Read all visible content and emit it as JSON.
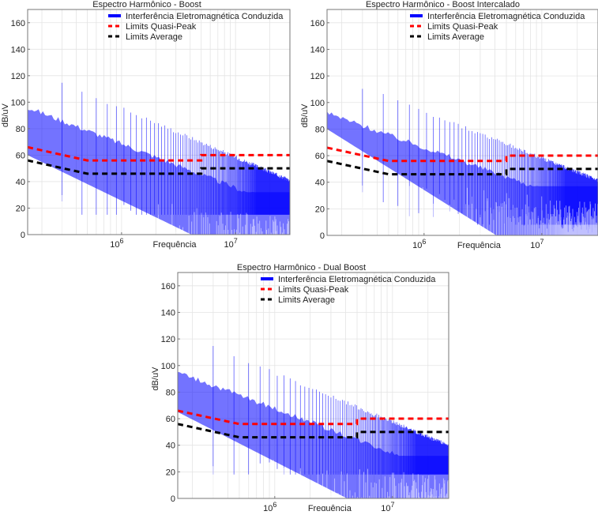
{
  "chart_data": [
    {
      "type": "line",
      "title": "Espectro Harmônico - Boost",
      "xlabel": "Frequência",
      "ylabel": "dB/uV",
      "xscale": "log",
      "xlim": [
        150000,
        30000000
      ],
      "ylim": [
        0,
        170
      ],
      "yticks": [
        0,
        20,
        40,
        60,
        80,
        100,
        120,
        140,
        160
      ],
      "xticks": [
        {
          "value": 1000000,
          "base": "10",
          "exp": "6"
        },
        {
          "value": 10000000,
          "base": "10",
          "exp": "7"
        }
      ],
      "grid": true,
      "legend_position": "top-right",
      "spectrum": {
        "name": "Interferência Eletromagnética Conduzida",
        "color": "#0000ff",
        "fundamental_hz": 150000,
        "peak_start_db": 126,
        "floor_start_db": 60,
        "floor_end_db": 30,
        "peak_slope_db_per_decade": -37,
        "deep_notch_db": 15
      },
      "series": [
        {
          "name": "Interferência Eletromagnética Conduzida",
          "color": "#0000ff",
          "style": "solid"
        },
        {
          "name": "Limits Quasi-Peak",
          "color": "#ff0000",
          "style": "dashed",
          "x": [
            150000,
            500000,
            5000000,
            5000000,
            30000000
          ],
          "y": [
            66,
            56,
            56,
            60,
            60
          ]
        },
        {
          "name": "Limits Average",
          "color": "#000000",
          "style": "dashed",
          "x": [
            150000,
            500000,
            5000000,
            5000000,
            30000000
          ],
          "y": [
            56,
            46,
            46,
            50,
            50
          ]
        }
      ]
    },
    {
      "type": "line",
      "title": "Espectro Harmônico - Boost Intercalado",
      "xlabel": "Frequência",
      "ylabel": "dB/uV",
      "xscale": "log",
      "xlim": [
        150000,
        30000000
      ],
      "ylim": [
        0,
        170
      ],
      "yticks": [
        0,
        20,
        40,
        60,
        80,
        100,
        120,
        140,
        160
      ],
      "xticks": [
        {
          "value": 1000000,
          "base": "10",
          "exp": "6"
        },
        {
          "value": 10000000,
          "base": "10",
          "exp": "7"
        }
      ],
      "grid": true,
      "legend_position": "top-right",
      "spectrum": {
        "name": "Interferência Eletromagnética Conduzida",
        "color": "#0000ff",
        "fundamental_hz": 150000,
        "peak_start_db": 122,
        "floor_start_db": 80,
        "floor_end_db": 35,
        "peak_slope_db_per_decade": -35,
        "deep_notch_db": 8
      },
      "series": [
        {
          "name": "Interferência Eletromagnética Conduzida",
          "color": "#0000ff",
          "style": "solid"
        },
        {
          "name": "Limits Quasi-Peak",
          "color": "#ff0000",
          "style": "dashed",
          "x": [
            150000,
            500000,
            5000000,
            5000000,
            30000000
          ],
          "y": [
            66,
            56,
            56,
            60,
            60
          ]
        },
        {
          "name": "Limits Average",
          "color": "#000000",
          "style": "dashed",
          "x": [
            150000,
            500000,
            5000000,
            5000000,
            30000000
          ],
          "y": [
            56,
            46,
            46,
            50,
            50
          ]
        }
      ]
    },
    {
      "type": "line",
      "title": "Espectro Harmônico - Dual Boost",
      "xlabel": "Frequência",
      "ylabel": "dB/uV",
      "xscale": "log",
      "xlim": [
        150000,
        30000000
      ],
      "ylim": [
        0,
        170
      ],
      "yticks": [
        0,
        20,
        40,
        60,
        80,
        100,
        120,
        140,
        160
      ],
      "xticks": [
        {
          "value": 1000000,
          "base": "10",
          "exp": "6"
        },
        {
          "value": 10000000,
          "base": "10",
          "exp": "7"
        }
      ],
      "grid": true,
      "legend_position": "top-right",
      "spectrum": {
        "name": "Interferência Eletromagnética Conduzida",
        "color": "#0000ff",
        "fundamental_hz": 150000,
        "peak_start_db": 125,
        "floor_start_db": 65,
        "floor_end_db": 30,
        "peak_slope_db_per_decade": -37,
        "deep_notch_db": 18
      },
      "series": [
        {
          "name": "Interferência Eletromagnética Conduzida",
          "color": "#0000ff",
          "style": "solid"
        },
        {
          "name": "Limits Quasi-Peak",
          "color": "#ff0000",
          "style": "dashed",
          "x": [
            150000,
            500000,
            5000000,
            5000000,
            30000000
          ],
          "y": [
            66,
            56,
            56,
            60,
            60
          ]
        },
        {
          "name": "Limits Average",
          "color": "#000000",
          "style": "dashed",
          "x": [
            150000,
            500000,
            5000000,
            5000000,
            30000000
          ],
          "y": [
            56,
            46,
            46,
            50,
            50
          ]
        }
      ]
    }
  ]
}
